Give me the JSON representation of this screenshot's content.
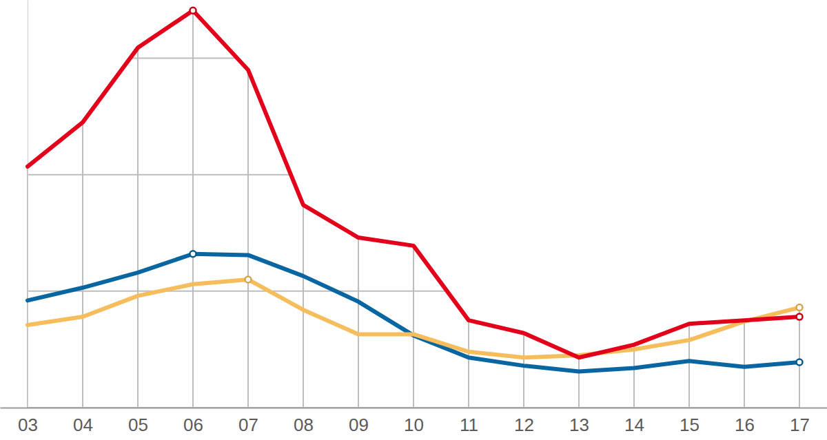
{
  "chart_data": {
    "type": "line",
    "categories": [
      "03",
      "04",
      "05",
      "06",
      "07",
      "08",
      "09",
      "10",
      "11",
      "12",
      "13",
      "14",
      "15",
      "16",
      "17"
    ],
    "series": [
      {
        "color": "#0a66a0",
        "marker": "circle",
        "values": [
          9.2,
          10.3,
          11.6,
          13.2,
          13.1,
          11.3,
          9.1,
          6.2,
          4.3,
          3.6,
          3.1,
          3.4,
          4.0,
          3.5,
          3.9
        ]
      },
      {
        "color": "#f6bd5c",
        "marker": "circle",
        "values": [
          7.1,
          7.8,
          9.6,
          10.6,
          11.0,
          8.4,
          6.3,
          6.3,
          4.8,
          4.3,
          4.5,
          5.0,
          5.8,
          7.4,
          8.6
        ]
      },
      {
        "color": "#e2001a",
        "marker": "circle",
        "values": [
          20.7,
          24.5,
          30.9,
          34.1,
          29.0,
          17.4,
          14.6,
          13.9,
          7.5,
          6.4,
          4.3,
          5.4,
          7.2,
          7.5,
          7.8
        ]
      }
    ],
    "ylim": [
      0,
      35
    ],
    "yticks": [
      0,
      10,
      20,
      30
    ],
    "grid": true,
    "tick_labels": "x"
  }
}
